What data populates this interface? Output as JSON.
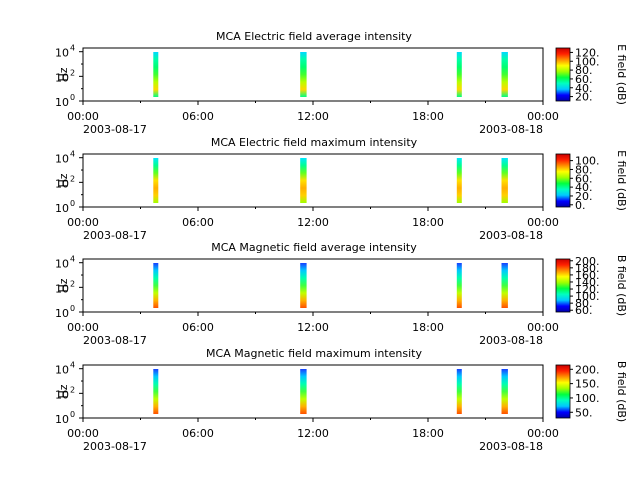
{
  "chart_data": [
    {
      "type": "heatmap",
      "title": "MCA  Electric field average intensity",
      "ylabel": "Hz",
      "cbar_label": "E field (dB)",
      "cbar_ticks": [
        "120.",
        "100.",
        "80.",
        "60.",
        "40.",
        "20."
      ],
      "cbar_range": [
        10,
        130
      ],
      "x_ticks": [
        "00:00",
        "06:00",
        "12:00",
        "18:00",
        "00:00"
      ],
      "x_start_date": "2003-08-17",
      "x_end_date": "2003-08-18",
      "y_scale": "log",
      "y_range_exponent": [
        0,
        4.3
      ],
      "y_ticks": [
        {
          "base": "10",
          "exp": "0"
        },
        {
          "base": "10",
          "exp": "2"
        },
        {
          "base": "10",
          "exp": "4"
        }
      ],
      "passes": [
        {
          "start": "03:40",
          "end": "03:50",
          "profile": "e_avg"
        },
        {
          "start": "11:20",
          "end": "11:40",
          "profile": "e_avg"
        },
        {
          "start": "19:30",
          "end": "19:40",
          "profile": "e_avg"
        },
        {
          "start": "21:50",
          "end": "22:10",
          "profile": "e_avg"
        }
      ]
    },
    {
      "type": "heatmap",
      "title": "MCA  Electric field maximum intensity",
      "ylabel": "Hz",
      "cbar_label": "E field (dB)",
      "cbar_ticks": [
        "100.",
        "80.",
        "60.",
        "40.",
        "20.",
        "0."
      ],
      "cbar_range": [
        -5,
        115
      ],
      "x_ticks": [
        "00:00",
        "06:00",
        "12:00",
        "18:00",
        "00:00"
      ],
      "x_start_date": "2003-08-17",
      "x_end_date": "2003-08-18",
      "y_scale": "log",
      "y_range_exponent": [
        0,
        4.3
      ],
      "y_ticks": [
        {
          "base": "10",
          "exp": "0"
        },
        {
          "base": "10",
          "exp": "2"
        },
        {
          "base": "10",
          "exp": "4"
        }
      ],
      "passes": [
        {
          "start": "03:40",
          "end": "03:50",
          "profile": "e_max"
        },
        {
          "start": "11:20",
          "end": "11:40",
          "profile": "e_max"
        },
        {
          "start": "19:30",
          "end": "19:40",
          "profile": "e_max"
        },
        {
          "start": "21:50",
          "end": "22:10",
          "profile": "e_max"
        }
      ]
    },
    {
      "type": "heatmap",
      "title": "MCA  Magnetic field average intensity",
      "ylabel": "Hz",
      "cbar_label": "B field (dB)",
      "cbar_ticks": [
        "200.",
        "180.",
        "160.",
        "140.",
        "120.",
        "100.",
        "80.",
        "60."
      ],
      "cbar_range": [
        55,
        205
      ],
      "x_ticks": [
        "00:00",
        "06:00",
        "12:00",
        "18:00",
        "00:00"
      ],
      "x_start_date": "2003-08-17",
      "x_end_date": "2003-08-18",
      "y_scale": "log",
      "y_range_exponent": [
        0,
        4.3
      ],
      "y_ticks": [
        {
          "base": "10",
          "exp": "0"
        },
        {
          "base": "10",
          "exp": "2"
        },
        {
          "base": "10",
          "exp": "4"
        }
      ],
      "passes": [
        {
          "start": "03:40",
          "end": "03:50",
          "profile": "b"
        },
        {
          "start": "11:20",
          "end": "11:40",
          "profile": "b"
        },
        {
          "start": "19:30",
          "end": "19:40",
          "profile": "b"
        },
        {
          "start": "21:50",
          "end": "22:10",
          "profile": "b"
        }
      ]
    },
    {
      "type": "heatmap",
      "title": "MCA  Magnetic field maximum intensity",
      "ylabel": "Hz",
      "cbar_label": "B field (dB)",
      "cbar_ticks": [
        "200.",
        "150.",
        "100.",
        "50."
      ],
      "cbar_range": [
        30,
        215
      ],
      "x_ticks": [
        "00:00",
        "06:00",
        "12:00",
        "18:00",
        "00:00"
      ],
      "x_start_date": "2003-08-17",
      "x_end_date": "2003-08-18",
      "y_scale": "log",
      "y_range_exponent": [
        0,
        4.3
      ],
      "y_ticks": [
        {
          "base": "10",
          "exp": "0"
        },
        {
          "base": "10",
          "exp": "2"
        },
        {
          "base": "10",
          "exp": "4"
        }
      ],
      "passes": [
        {
          "start": "03:40",
          "end": "03:50",
          "profile": "b"
        },
        {
          "start": "11:20",
          "end": "11:40",
          "profile": "b"
        },
        {
          "start": "19:30",
          "end": "19:40",
          "profile": "b"
        },
        {
          "start": "21:50",
          "end": "22:10",
          "profile": "b"
        }
      ]
    }
  ]
}
